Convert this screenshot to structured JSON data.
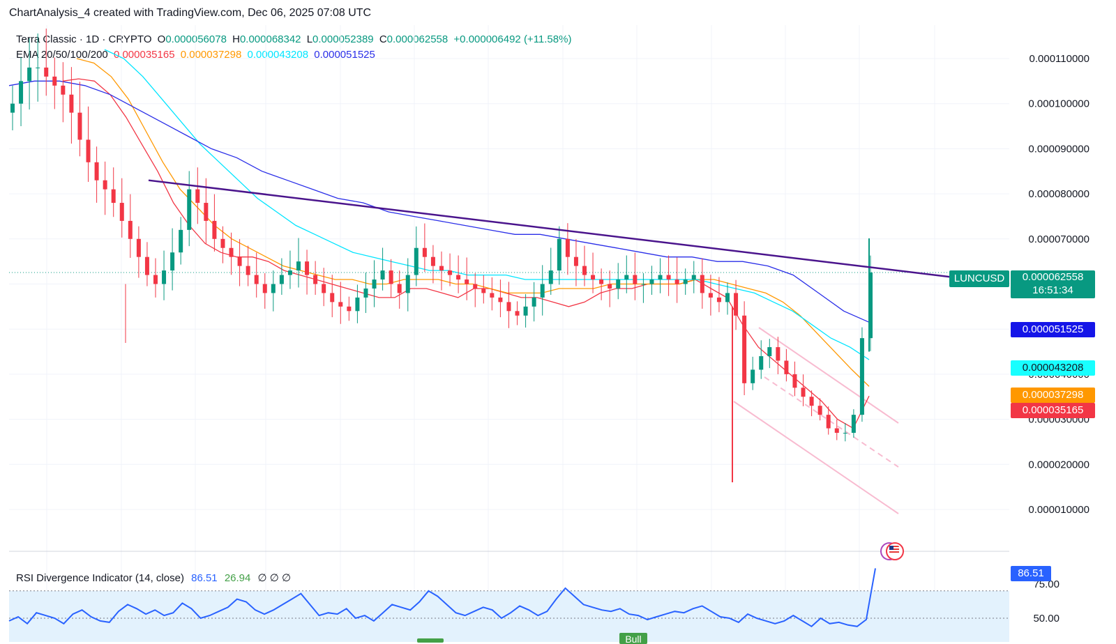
{
  "attribution": "ChartAnalysis_4 created with TradingView.com, Dec 06, 2025 07:08 UTC",
  "legend": {
    "symbol": "Terra Classic · 1D · CRYPTO",
    "open_label": "O",
    "open": "0.000056078",
    "high_label": "H",
    "high": "0.000068342",
    "low_label": "L",
    "low": "0.000052389",
    "close_label": "C",
    "close": "0.000062558",
    "change": "+0.000006492 (+11.58%)",
    "ema_label": "EMA 20/50/100/200",
    "ema20": "0.000035165",
    "ema50": "0.000037298",
    "ema100": "0.000043208",
    "ema200": "0.000051525"
  },
  "rsi_legend": {
    "label": "RSI Divergence Indicator (14, close)",
    "value1": "86.51",
    "value2": "26.94",
    "flags": "∅ ∅ ∅"
  },
  "tags": {
    "symbol": "LUNCUSD",
    "price": "0.000062558",
    "countdown": "16:51:34",
    "ema200": "0.000051525",
    "ema100": "0.000043208",
    "ema50": "0.000037298",
    "ema20": "0.000035165",
    "rsi": "86.51",
    "bull": "Bull"
  },
  "colors": {
    "up": "#089981",
    "down": "#f23645",
    "ema20": "#f23645",
    "ema50": "#ff9800",
    "ema100": "#00e5ff",
    "ema200": "#2a2ee8",
    "trendline": "#4a148c",
    "channel": "#f8bbd0",
    "rsi": "#2962ff",
    "rsi_band": "#e3f2fd"
  },
  "chart_data": {
    "type": "candlestick",
    "y_axis_labels": [
      "0.000110000",
      "0.000100000",
      "0.000090000",
      "0.000080000",
      "0.000070000",
      "0.000040000",
      "0.000030000",
      "0.000020000",
      "0.000010000"
    ],
    "y_axis_ticks": [
      0.00011,
      0.0001,
      9e-05,
      8e-05,
      7e-05,
      4e-05,
      3e-05,
      2e-05,
      1e-05
    ],
    "ylim": [
      3e-06,
      0.00012
    ],
    "last_close": 6.2558e-05,
    "series_price": [
      0.0001,
      0.000105,
      0.000108,
      0.000108,
      0.000106,
      0.000104,
      0.000102,
      9.8e-05,
      9.2e-05,
      8.7e-05,
      8.3e-05,
      8.1e-05,
      7.8e-05,
      7.4e-05,
      7e-05,
      6.6e-05,
      6.2e-05,
      6e-05,
      6.3e-05,
      6.7e-05,
      7.2e-05,
      8.1e-05,
      7.8e-05,
      7.4e-05,
      7e-05,
      6.8e-05,
      6.6e-05,
      6.4e-05,
      6.2e-05,
      6e-05,
      5.8e-05,
      6e-05,
      6.2e-05,
      6.3e-05,
      6.5e-05,
      6.2e-05,
      6e-05,
      5.8e-05,
      5.6e-05,
      5.5e-05,
      5.4e-05,
      5.7e-05,
      5.9e-05,
      6.1e-05,
      6.3e-05,
      6e-05,
      5.8e-05,
      6.2e-05,
      6.8e-05,
      6.6e-05,
      6.4e-05,
      6.3e-05,
      6.2e-05,
      6.1e-05,
      6e-05,
      5.9e-05,
      5.8e-05,
      5.7e-05,
      5.6e-05,
      5.4e-05,
      5.3e-05,
      5.5e-05,
      5.7e-05,
      6e-05,
      6.3e-05,
      7e-05,
      6.6e-05,
      6.4e-05,
      6.2e-05,
      6.1e-05,
      6e-05,
      5.9e-05,
      6.1e-05,
      6.2e-05,
      6e-05,
      6e-05,
      6.1e-05,
      6.2e-05,
      6.1e-05,
      6e-05,
      6.1e-05,
      6.2e-05,
      5.8e-05,
      5.7e-05,
      5.6e-05,
      5.8e-05,
      5.3e-05,
      3.8e-05,
      4.1e-05,
      4.4e-05,
      4.6e-05,
      4.3e-05,
      4e-05,
      3.7e-05,
      3.5e-05,
      3.3e-05,
      3.1e-05,
      2.8e-05,
      2.7e-05,
      2.7e-05,
      3.1e-05,
      4.8e-05,
      6.2558e-05
    ],
    "ema20": [
      0.000105,
      0.0001055,
      0.000105,
      0.000102,
      9.7e-05,
      9.1e-05,
      8.5e-05,
      7.8e-05,
      7.3e-05,
      6.9e-05,
      6.7e-05,
      6.6e-05,
      6.6e-05,
      6.5e-05,
      6.3e-05,
      6.2e-05,
      6.1e-05,
      6e-05,
      5.9e-05,
      5.8e-05,
      5.7e-05,
      5.7e-05,
      5.9e-05,
      5.9e-05,
      5.8e-05,
      5.7e-05,
      5.9e-05,
      5.9e-05,
      5.8e-05,
      5.7e-05,
      5.7e-05,
      5.6e-05,
      5.5e-05,
      5.6e-05,
      5.8e-05,
      5.9e-05,
      5.9e-05,
      6e-05,
      6e-05,
      6e-05,
      6.1e-05,
      5.9e-05,
      5.7e-05,
      5.1e-05,
      4.6e-05,
      4.3e-05,
      4e-05,
      3.7e-05,
      3.4e-05,
      3e-05,
      2.8e-05,
      3.5165e-05
    ],
    "ema50": [
      0.00011,
      0.000109,
      0.000106,
      0.000101,
      9.4e-05,
      8.7e-05,
      8.1e-05,
      7.7e-05,
      7.3e-05,
      7e-05,
      6.8e-05,
      6.6e-05,
      6.4e-05,
      6.3e-05,
      6.2e-05,
      6.1e-05,
      6.1e-05,
      6e-05,
      6e-05,
      6.1e-05,
      6.1e-05,
      6.1e-05,
      6e-05,
      6e-05,
      5.9e-05,
      5.8e-05,
      5.8e-05,
      5.8e-05,
      5.9e-05,
      5.9e-05,
      5.9e-05,
      6e-05,
      6e-05,
      6e-05,
      6e-05,
      6e-05,
      6.1e-05,
      6.1e-05,
      6e-05,
      5.9e-05,
      5.8e-05,
      5.6e-05,
      5.3e-05,
      4.9e-05,
      4.5e-05,
      4.1e-05,
      3.7298e-05
    ],
    "ema100": [
      0.000112,
      0.00011,
      0.000106,
      0.000101,
      9.6e-05,
      9.1e-05,
      8.7e-05,
      8.3e-05,
      7.9e-05,
      7.6e-05,
      7.3e-05,
      7.1e-05,
      6.9e-05,
      6.7e-05,
      6.6e-05,
      6.5e-05,
      6.4e-05,
      6.3e-05,
      6.3e-05,
      6.2e-05,
      6.2e-05,
      6.2e-05,
      6.1e-05,
      6.1e-05,
      6.1e-05,
      6.1e-05,
      6.1e-05,
      6.1e-05,
      6.1e-05,
      6.1e-05,
      6.1e-05,
      6.1e-05,
      6e-05,
      5.9e-05,
      5.8e-05,
      5.6e-05,
      5.4e-05,
      5.1e-05,
      4.8e-05,
      4.6e-05,
      4.3208e-05
    ],
    "ema200": [
      0.000104,
      0.000105,
      0.000105,
      0.000104,
      0.000102,
      9.9e-05,
      9.6e-05,
      9.3e-05,
      9e-05,
      8.8e-05,
      8.5e-05,
      8.3e-05,
      8.1e-05,
      7.9e-05,
      7.8e-05,
      7.6e-05,
      7.5e-05,
      7.4e-05,
      7.3e-05,
      7.2e-05,
      7.1e-05,
      7.1e-05,
      7e-05,
      6.9e-05,
      6.8e-05,
      6.7e-05,
      6.6e-05,
      6.6e-05,
      6.5e-05,
      6.5e-05,
      6.4e-05,
      6.2e-05,
      5.8e-05,
      5.4e-05,
      5.1525e-05
    ],
    "trendline": {
      "start": 8.3e-05,
      "end": 6e-05
    },
    "rsi": {
      "ylabels": [
        "75.00",
        "50.00"
      ],
      "ylim": [
        40,
        90
      ],
      "bands": [
        70,
        50
      ],
      "values": [
        48,
        51,
        46,
        54,
        52,
        50,
        46,
        53,
        56,
        51,
        48,
        47,
        55,
        60,
        57,
        53,
        56,
        52,
        54,
        61,
        57,
        50,
        52,
        55,
        58,
        64,
        62,
        56,
        53,
        56,
        60,
        64,
        68,
        60,
        52,
        54,
        53,
        57,
        50,
        52,
        48,
        54,
        60,
        58,
        56,
        62,
        70,
        66,
        60,
        54,
        52,
        55,
        58,
        56,
        50,
        54,
        59,
        56,
        52,
        55,
        64,
        72,
        66,
        60,
        58,
        56,
        55,
        57,
        53,
        52,
        49,
        51,
        53,
        55,
        54,
        57,
        59,
        55,
        51,
        50,
        47,
        53,
        50,
        48,
        46,
        48,
        52,
        48,
        44,
        50,
        46,
        47,
        45,
        44,
        49,
        86.51
      ]
    }
  }
}
